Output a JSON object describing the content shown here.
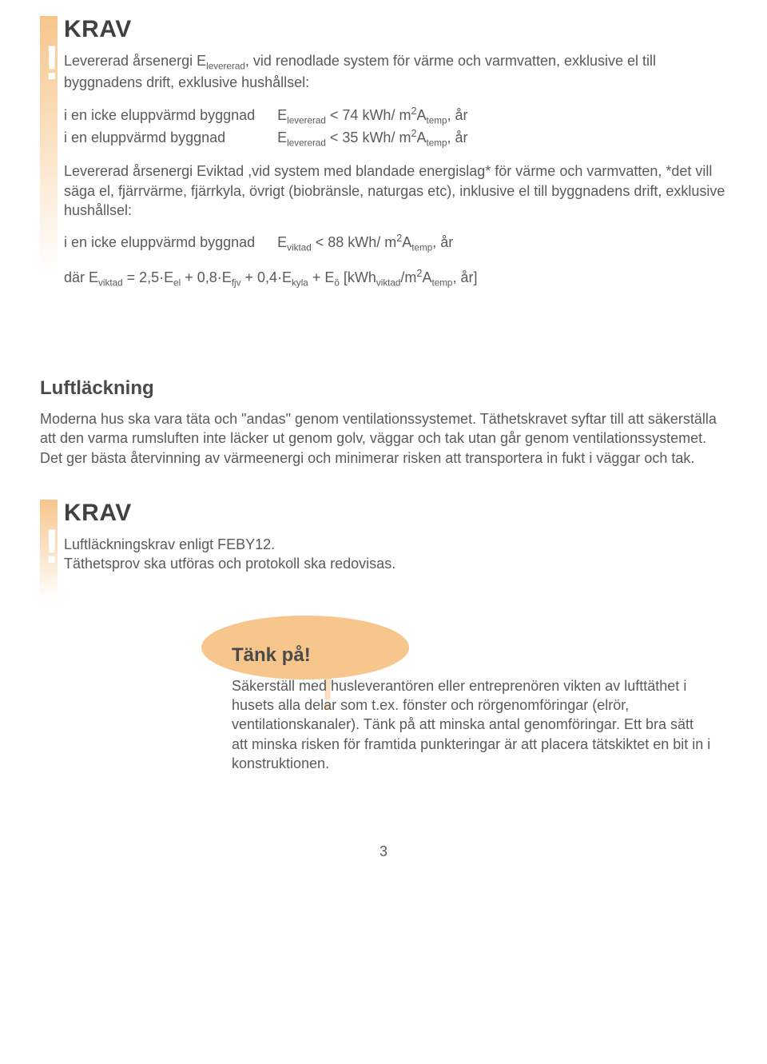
{
  "krav1": {
    "title": "KRAV",
    "intro_html": "Levererad årsenergi E<sub>levererad</sub>, vid renodlade system för värme och varmvatten, exklusive el till byggnadens drift, exklusive hushållsel:",
    "rows1": [
      {
        "label": "i en icke eluppvärmd byggnad",
        "value_html": "E<sub>levererad</sub> < 74 kWh/ m<sup>2</sup>A<sub>temp</sub>, år"
      },
      {
        "label": "i en eluppvärmd byggnad",
        "value_html": "E<sub>levererad</sub> < 35 kWh/ m<sup>2</sup>A<sub>temp</sub>, år"
      }
    ],
    "mid_html": "Levererad årsenergi Eviktad ,vid system med blandade energislag* för värme och varmvatten, *det vill säga el, fjärrvärme, fjärrkyla, övrigt (biobränsle, naturgas etc), inklusive el till byggnadens drift, exklusive hushållsel:",
    "rows2": [
      {
        "label": "i en icke eluppvärmd byggnad",
        "value_html": "E<sub>viktad</sub> < 88 kWh/ m<sup>2</sup>A<sub>temp</sub>, år"
      }
    ],
    "formula_html": "där E<sub>viktad</sub> = 2,5·E<sub>el</sub> + 0,8·E<sub>fjv</sub> + 0,4·E<sub>kyla</sub> + E<sub>ö</sub> [kWh<sub>viktad</sub>/m<sup>2</sup>A<sub>temp</sub>, år]"
  },
  "section": {
    "heading": "Luftläckning",
    "body": "Moderna hus ska vara täta och \"andas\" genom ventilationssystemet. Täthetskravet syftar till att säkerställa att den varma rumsluften inte läcker ut genom golv, väggar och tak utan går genom ventilationssystemet. Det ger bästa återvinning av värmeenergi och minimerar risken att transportera in fukt i väggar och tak."
  },
  "krav2": {
    "title": "KRAV",
    "line1": "Luftläckningskrav enligt FEBY12.",
    "line2": "Täthetsprov ska utföras och protokoll ska redovisas."
  },
  "callout": {
    "title": "Tänk på!",
    "body": "Säkerställ med husleverantören eller entreprenören vikten av lufttäthet i husets alla delar som t.ex. fönster och rörgenomföringar (elrör, ventilationskanaler). Tänk på att minska antal genomföringar. Ett bra sätt att minska risken för framtida punkteringar är att placera tätskiktet en bit in i konstruktionen."
  },
  "page_number": "3",
  "styling": {
    "background_color": "#ffffff",
    "text_color": "#5a5a5a",
    "heading_color": "#4a4a4a",
    "accent_color": "#f6c68c",
    "body_fontsize": 18,
    "heading_fontsize": 24,
    "krav_title_fontsize": 30
  }
}
